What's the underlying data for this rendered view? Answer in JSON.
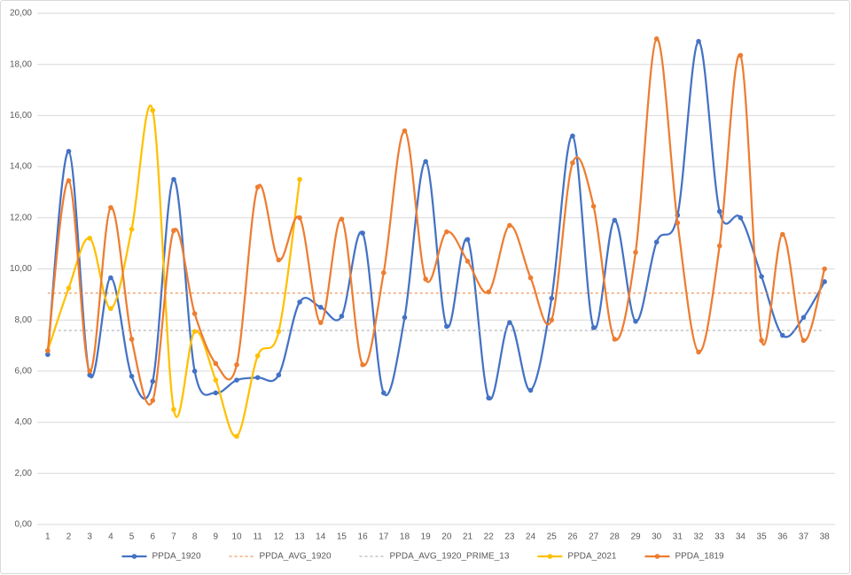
{
  "chart_data": {
    "type": "line",
    "smooth": true,
    "categories": [
      "1",
      "2",
      "3",
      "4",
      "5",
      "6",
      "7",
      "8",
      "9",
      "10",
      "11",
      "12",
      "13",
      "14",
      "15",
      "16",
      "17",
      "18",
      "19",
      "20",
      "21",
      "22",
      "23",
      "24",
      "25",
      "26",
      "27",
      "28",
      "29",
      "30",
      "31",
      "32",
      "33",
      "34",
      "35",
      "36",
      "37",
      "38"
    ],
    "ylim": [
      0,
      20
    ],
    "yticks": [
      {
        "value": 0,
        "label": "0,00"
      },
      {
        "value": 2,
        "label": "2,00"
      },
      {
        "value": 4,
        "label": "4,00"
      },
      {
        "value": 6,
        "label": "6,00"
      },
      {
        "value": 8,
        "label": "8,00"
      },
      {
        "value": 10,
        "label": "10,00"
      },
      {
        "value": 12,
        "label": "12,00"
      },
      {
        "value": 14,
        "label": "14,00"
      },
      {
        "value": 16,
        "label": "16,00"
      },
      {
        "value": 18,
        "label": "18,00"
      },
      {
        "value": 20,
        "label": "20,00"
      }
    ],
    "grid": true,
    "legend": "bottom",
    "series": [
      {
        "name": "PPDA_1920",
        "color": "#4472c4",
        "dashed": false,
        "markers": true,
        "values": [
          6.65,
          14.6,
          5.85,
          9.65,
          5.8,
          5.6,
          13.5,
          6.0,
          5.15,
          5.65,
          5.75,
          5.85,
          8.7,
          8.5,
          8.15,
          11.4,
          5.15,
          8.1,
          14.2,
          7.75,
          11.15,
          4.95,
          7.9,
          5.25,
          8.85,
          15.2,
          7.7,
          11.9,
          7.95,
          11.05,
          12.1,
          18.9,
          12.25,
          12.0,
          9.7,
          7.4,
          8.1,
          9.5
        ]
      },
      {
        "name": "PPDA_AVG_1920",
        "color": "#ed7d31",
        "dashed": true,
        "markers": false,
        "values": [
          9.05,
          9.05,
          9.05,
          9.05,
          9.05,
          9.05,
          9.05,
          9.05,
          9.05,
          9.05,
          9.05,
          9.05,
          9.05,
          9.05,
          9.05,
          9.05,
          9.05,
          9.05,
          9.05,
          9.05,
          9.05,
          9.05,
          9.05,
          9.05,
          9.05,
          9.05,
          9.05,
          9.05,
          9.05,
          9.05,
          9.05,
          9.05,
          9.05,
          9.05,
          9.05,
          9.05,
          9.05,
          9.05
        ]
      },
      {
        "name": "PPDA_AVG_1920_PRIME_13",
        "color": "#a5a5a5",
        "dashed": true,
        "markers": false,
        "values": [
          7.59,
          7.59,
          7.59,
          7.59,
          7.59,
          7.59,
          7.59,
          7.59,
          7.59,
          7.59,
          7.59,
          7.59,
          7.59,
          7.59,
          7.59,
          7.59,
          7.59,
          7.59,
          7.59,
          7.59,
          7.59,
          7.59,
          7.59,
          7.59,
          7.59,
          7.59,
          7.59,
          7.59,
          7.59,
          7.59,
          7.59,
          7.59,
          7.59,
          7.59,
          7.59,
          7.59,
          7.59,
          7.59
        ]
      },
      {
        "name": "PPDA_2021",
        "color": "#ffc000",
        "dashed": false,
        "markers": true,
        "values": [
          6.8,
          9.25,
          11.2,
          8.45,
          11.55,
          16.2,
          4.5,
          7.55,
          5.65,
          3.45,
          6.6,
          7.55,
          13.5,
          null,
          null,
          null,
          null,
          null,
          null,
          null,
          null,
          null,
          null,
          null,
          null,
          null,
          null,
          null,
          null,
          null,
          null,
          null,
          null,
          null,
          null,
          null,
          null,
          null
        ]
      },
      {
        "name": "PPDA_1819",
        "color": "#ed7d31",
        "dashed": false,
        "markers": true,
        "values": [
          6.8,
          13.45,
          6.0,
          12.4,
          7.25,
          4.85,
          11.5,
          8.25,
          6.3,
          6.25,
          13.2,
          10.35,
          12.0,
          7.9,
          11.95,
          6.25,
          9.85,
          15.4,
          9.6,
          11.45,
          10.3,
          9.1,
          11.7,
          9.65,
          8.0,
          14.15,
          12.45,
          7.25,
          10.65,
          19.0,
          11.8,
          6.75,
          10.9,
          18.35,
          7.2,
          11.35,
          7.2,
          10.0
        ]
      }
    ]
  }
}
